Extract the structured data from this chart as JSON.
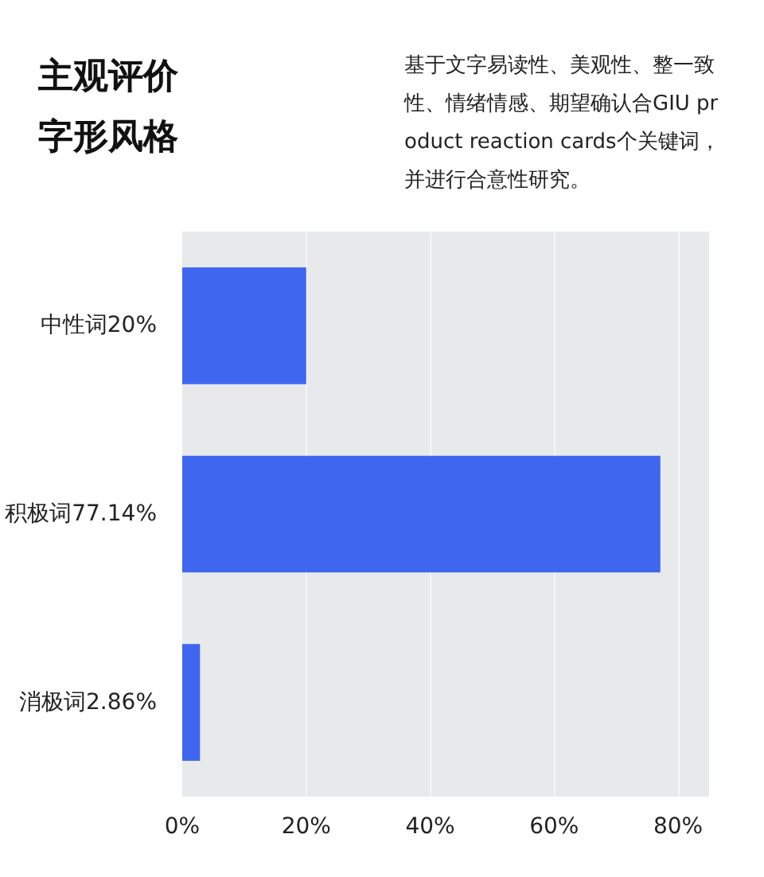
{
  "chart_data": {
    "type": "bar",
    "orientation": "horizontal",
    "title": "主观评价字形风格",
    "subtitle": "基于文字易读性、美观性、整一致性、情绪情感、期望确认合GIU product reaction cards个关键词，并进行合意性研究。",
    "categories": [
      "中性词20%",
      "积极词77.14%",
      "消极词2.86%"
    ],
    "values": [
      20,
      77.14,
      2.86
    ],
    "color": "#3f66ee",
    "xlim": [
      0,
      85
    ],
    "xticks": [
      {
        "value": 0,
        "label": "0%"
      },
      {
        "value": 20,
        "label": "20%"
      },
      {
        "value": 40,
        "label": "40%"
      },
      {
        "value": 60,
        "label": "60%"
      },
      {
        "value": 80,
        "label": "80%"
      }
    ],
    "grid": "x"
  }
}
